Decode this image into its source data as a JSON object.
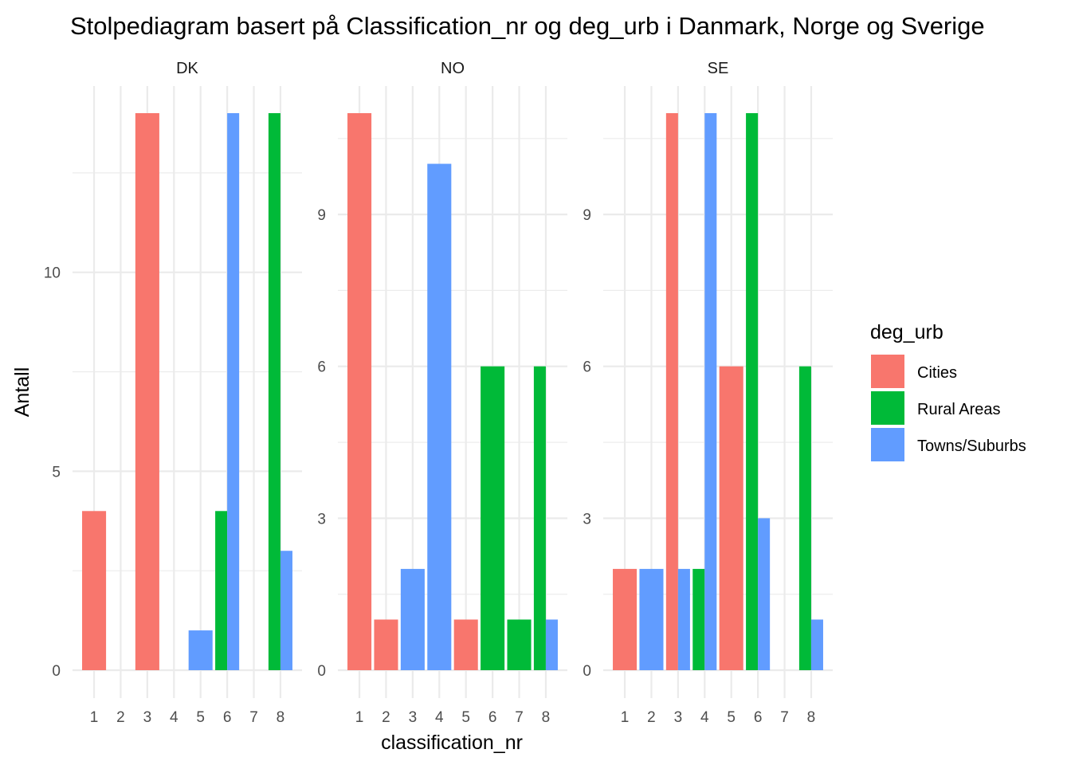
{
  "chart_data": {
    "type": "bar",
    "title": "Stolpediagram basert på Classification_nr og deg_urb i Danmark, Norge og Sverige",
    "xlabel": "classification_nr",
    "ylabel": "Antall",
    "legend": {
      "title": "deg_urb",
      "placement": "right",
      "entries": [
        {
          "name": "Cities",
          "color": "#F8766D"
        },
        {
          "name": "Rural Areas",
          "color": "#00BA38"
        },
        {
          "name": "Towns/Suburbs",
          "color": "#619CFF"
        }
      ]
    },
    "series_order": [
      "Cities",
      "Rural Areas",
      "Towns/Suburbs"
    ],
    "categories": [
      "1",
      "2",
      "3",
      "4",
      "5",
      "6",
      "7",
      "8"
    ],
    "facets": [
      {
        "label": "DK",
        "ylim": [
          0,
          14
        ],
        "yticks": [
          0,
          5,
          10
        ],
        "bars": [
          {
            "x": 1,
            "series": "Cities",
            "value": 4
          },
          {
            "x": 3,
            "series": "Cities",
            "value": 14
          },
          {
            "x": 5,
            "series": "Towns/Suburbs",
            "value": 1
          },
          {
            "x": 6,
            "series": "Rural Areas",
            "value": 4
          },
          {
            "x": 6,
            "series": "Towns/Suburbs",
            "value": 14
          },
          {
            "x": 8,
            "series": "Rural Areas",
            "value": 14
          },
          {
            "x": 8,
            "series": "Towns/Suburbs",
            "value": 3
          }
        ]
      },
      {
        "label": "NO",
        "ylim": [
          0,
          11
        ],
        "yticks": [
          0,
          3,
          6,
          9
        ],
        "bars": [
          {
            "x": 1,
            "series": "Cities",
            "value": 11
          },
          {
            "x": 2,
            "series": "Cities",
            "value": 1
          },
          {
            "x": 3,
            "series": "Towns/Suburbs",
            "value": 2
          },
          {
            "x": 4,
            "series": "Towns/Suburbs",
            "value": 10
          },
          {
            "x": 5,
            "series": "Cities",
            "value": 1
          },
          {
            "x": 6,
            "series": "Rural Areas",
            "value": 6
          },
          {
            "x": 7,
            "series": "Rural Areas",
            "value": 1
          },
          {
            "x": 8,
            "series": "Rural Areas",
            "value": 6
          },
          {
            "x": 8,
            "series": "Towns/Suburbs",
            "value": 1
          }
        ]
      },
      {
        "label": "SE",
        "ylim": [
          0,
          11
        ],
        "yticks": [
          0,
          3,
          6,
          9
        ],
        "bars": [
          {
            "x": 1,
            "series": "Cities",
            "value": 2
          },
          {
            "x": 2,
            "series": "Towns/Suburbs",
            "value": 2
          },
          {
            "x": 3,
            "series": "Cities",
            "value": 11
          },
          {
            "x": 3,
            "series": "Towns/Suburbs",
            "value": 2
          },
          {
            "x": 4,
            "series": "Rural Areas",
            "value": 2
          },
          {
            "x": 4,
            "series": "Towns/Suburbs",
            "value": 11
          },
          {
            "x": 5,
            "series": "Cities",
            "value": 6
          },
          {
            "x": 6,
            "series": "Rural Areas",
            "value": 11
          },
          {
            "x": 6,
            "series": "Towns/Suburbs",
            "value": 3
          },
          {
            "x": 8,
            "series": "Rural Areas",
            "value": 6
          },
          {
            "x": 8,
            "series": "Towns/Suburbs",
            "value": 1
          }
        ]
      }
    ]
  }
}
